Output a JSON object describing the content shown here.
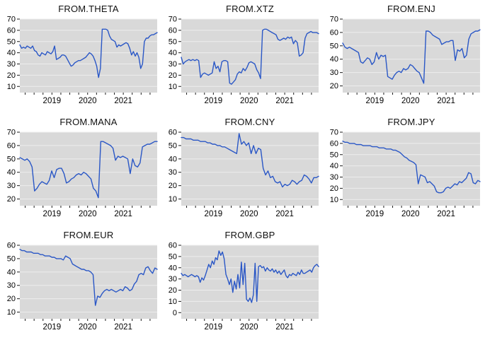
{
  "figure": {
    "description": "Grid of eight time-series line charts",
    "grid": {
      "columns": 3,
      "rows": 3
    }
  },
  "style": {
    "page_bg": "#ffffff",
    "plot_bg": "#d9d9d9",
    "grid_color": "#ededed",
    "tick_color": "#1a1a1a",
    "text_color": "#000000",
    "line_color": "#2a57c6"
  },
  "chart_data": [
    {
      "type": "line",
      "title": "FROM.THETA",
      "xlabel": "",
      "ylabel": "",
      "xlim": [
        2018.1,
        2021.95
      ],
      "x_tick_labels": [
        "2019",
        "2020",
        "2021"
      ],
      "x_tick_positions": [
        2019,
        2020,
        2021
      ],
      "x_minor_step": 0.25,
      "yticks": [
        10,
        20,
        30,
        40,
        50,
        60,
        70
      ],
      "ylim": [
        4.5,
        70
      ],
      "grid": "horizontal",
      "legend": "none",
      "line_color": "#2a57c6",
      "values": [
        47,
        44,
        45,
        44,
        46,
        45,
        44,
        46,
        42,
        41,
        38,
        37,
        40,
        39,
        38,
        41,
        40,
        39,
        41,
        46,
        34,
        35,
        36,
        38,
        38,
        37,
        34,
        31,
        28,
        29,
        31,
        32,
        33,
        33,
        34,
        35,
        36,
        38,
        40,
        39,
        37,
        33,
        28,
        18,
        26,
        61,
        61,
        61,
        60,
        55,
        52,
        51,
        50,
        45,
        47,
        46,
        47,
        48,
        49,
        48,
        44,
        38,
        41,
        37,
        40,
        36,
        26,
        30,
        50,
        53,
        53,
        55,
        56,
        56,
        57,
        58
      ]
    },
    {
      "type": "line",
      "title": "FROM.XTZ",
      "xlabel": "",
      "ylabel": "",
      "xlim": [
        2018.1,
        2021.95
      ],
      "x_tick_labels": [
        "2019",
        "2020",
        "2021"
      ],
      "x_tick_positions": [
        2019,
        2020,
        2021
      ],
      "x_minor_step": 0.25,
      "yticks": [
        10,
        20,
        30,
        40,
        50,
        60,
        70
      ],
      "ylim": [
        4.5,
        70
      ],
      "grid": "horizontal",
      "legend": "none",
      "line_color": "#2a57c6",
      "values": [
        36,
        30,
        32,
        33,
        34,
        33,
        34,
        33,
        34,
        33,
        18,
        21,
        22,
        21,
        20,
        21,
        22,
        32,
        26,
        28,
        23,
        32,
        33,
        33,
        32,
        13,
        12,
        14,
        16,
        21,
        23,
        22,
        26,
        24,
        27,
        31,
        32,
        31,
        30,
        25,
        22,
        17,
        60,
        61,
        61,
        60,
        59,
        58,
        57,
        56,
        52,
        51,
        52,
        53,
        52,
        54,
        53,
        54,
        48,
        51,
        49,
        37,
        38,
        40,
        53,
        57,
        58,
        59,
        58,
        58,
        58,
        57
      ]
    },
    {
      "type": "line",
      "title": "FROM.ENJ",
      "xlabel": "",
      "ylabel": "",
      "xlim": [
        2018.1,
        2021.95
      ],
      "x_tick_labels": [
        "2019",
        "2020",
        "2021"
      ],
      "x_tick_positions": [
        2019,
        2020,
        2021
      ],
      "x_minor_step": 0.25,
      "yticks": [
        20,
        30,
        40,
        50,
        60,
        70
      ],
      "ylim": [
        15,
        70
      ],
      "grid": "horizontal",
      "legend": "none",
      "line_color": "#2a57c6",
      "values": [
        52,
        49,
        48,
        49,
        48,
        47,
        46,
        45,
        38,
        37,
        39,
        41,
        40,
        36,
        38,
        45,
        40,
        43,
        42,
        43,
        27,
        26,
        25,
        28,
        30,
        31,
        30,
        33,
        32,
        33,
        36,
        35,
        33,
        31,
        30,
        26,
        22,
        61,
        61,
        60,
        58,
        57,
        56,
        55,
        51,
        52,
        53,
        53,
        54,
        54,
        39,
        47,
        46,
        48,
        41,
        43,
        55,
        59,
        60,
        61,
        61,
        62
      ]
    },
    {
      "type": "line",
      "title": "FROM.MANA",
      "xlabel": "",
      "ylabel": "",
      "xlim": [
        2018.1,
        2021.95
      ],
      "x_tick_labels": [
        "2019",
        "2020",
        "2021"
      ],
      "x_tick_positions": [
        2019,
        2020,
        2021
      ],
      "x_minor_step": 0.25,
      "yticks": [
        20,
        30,
        40,
        50,
        60,
        70
      ],
      "ylim": [
        15,
        70
      ],
      "grid": "horizontal",
      "legend": "none",
      "line_color": "#2a57c6",
      "values": [
        51,
        50,
        49,
        50,
        48,
        44,
        26,
        28,
        31,
        33,
        32,
        31,
        34,
        41,
        36,
        42,
        43,
        43,
        39,
        32,
        33,
        35,
        36,
        38,
        39,
        38,
        40,
        39,
        37,
        35,
        28,
        26,
        21,
        63,
        63,
        62,
        61,
        60,
        58,
        49,
        52,
        51,
        52,
        51,
        50,
        39,
        50,
        45,
        44,
        47,
        59,
        60,
        61,
        61,
        62,
        63,
        63
      ]
    },
    {
      "type": "line",
      "title": "FROM.CNY",
      "xlabel": "",
      "ylabel": "",
      "xlim": [
        2018.1,
        2021.95
      ],
      "x_tick_labels": [
        "2019",
        "2020",
        "2021"
      ],
      "x_tick_positions": [
        2019,
        2020,
        2021
      ],
      "x_minor_step": 0.25,
      "yticks": [
        10,
        20,
        30,
        40,
        50,
        60
      ],
      "ylim": [
        5,
        60
      ],
      "grid": "horizontal",
      "legend": "none",
      "line_color": "#2a57c6",
      "values": [
        56,
        56,
        55,
        55,
        55,
        54,
        54,
        54,
        53,
        53,
        53,
        52,
        52,
        51,
        51,
        50,
        50,
        49,
        49,
        48,
        47,
        46,
        45,
        44,
        59,
        51,
        53,
        50,
        52,
        44,
        50,
        44,
        48,
        47,
        33,
        28,
        31,
        26,
        27,
        23,
        22,
        23,
        19,
        21,
        20,
        21,
        24,
        23,
        21,
        23,
        24,
        28,
        27,
        25,
        22,
        26,
        26,
        27
      ]
    },
    {
      "type": "line",
      "title": "FROM.JPY",
      "xlabel": "",
      "ylabel": "",
      "xlim": [
        2018.1,
        2021.95
      ],
      "x_tick_labels": [
        "2019",
        "2020",
        "2021"
      ],
      "x_tick_positions": [
        2019,
        2020,
        2021
      ],
      "x_minor_step": 0.25,
      "yticks": [
        10,
        20,
        30,
        40,
        50,
        60,
        70
      ],
      "ylim": [
        4.5,
        70
      ],
      "grid": "horizontal",
      "legend": "none",
      "line_color": "#2a57c6",
      "values": [
        62,
        61,
        61,
        60,
        60,
        60,
        59,
        59,
        59,
        58,
        58,
        58,
        58,
        57,
        57,
        57,
        56,
        56,
        56,
        55,
        55,
        55,
        54,
        54,
        53,
        52,
        50,
        48,
        47,
        45,
        44,
        43,
        41,
        24,
        32,
        31,
        30,
        25,
        26,
        24,
        22,
        17,
        16,
        16,
        17,
        20,
        21,
        20,
        22,
        24,
        23,
        26,
        25,
        27,
        29,
        34,
        33,
        25,
        24,
        27,
        26
      ]
    },
    {
      "type": "line",
      "title": "FROM.EUR",
      "xlabel": "",
      "ylabel": "",
      "xlim": [
        2018.1,
        2021.95
      ],
      "x_tick_labels": [
        "2019",
        "2020",
        "2021"
      ],
      "x_tick_positions": [
        2019,
        2020,
        2021
      ],
      "x_minor_step": 0.25,
      "yticks": [
        10,
        20,
        30,
        40,
        50,
        60
      ],
      "ylim": [
        5,
        60
      ],
      "grid": "horizontal",
      "legend": "none",
      "line_color": "#2a57c6",
      "values": [
        57,
        56,
        56,
        55,
        55,
        55,
        54,
        54,
        54,
        53,
        53,
        52,
        52,
        52,
        51,
        51,
        50,
        50,
        50,
        49,
        52,
        51,
        50,
        46,
        45,
        44,
        43,
        42,
        42,
        41,
        41,
        40,
        38,
        15,
        22,
        21,
        24,
        26,
        27,
        26,
        27,
        26,
        25,
        26,
        27,
        26,
        29,
        28,
        26,
        27,
        31,
        33,
        38,
        39,
        38,
        43,
        44,
        41,
        39,
        43,
        42
      ]
    },
    {
      "type": "line",
      "title": "FROM.GBP",
      "xlabel": "",
      "ylabel": "",
      "xlim": [
        2018.1,
        2021.95
      ],
      "x_tick_labels": [
        "2019",
        "2020",
        "2021"
      ],
      "x_tick_positions": [
        2019,
        2020,
        2021
      ],
      "x_minor_step": 0.25,
      "yticks": [
        0,
        10,
        20,
        30,
        40,
        50,
        60
      ],
      "ylim": [
        -5.5,
        60
      ],
      "grid": "horizontal",
      "legend": "none",
      "line_color": "#2a57c6",
      "values": [
        35,
        33,
        34,
        33,
        32,
        33,
        34,
        33,
        32,
        33,
        32,
        27,
        31,
        29,
        33,
        38,
        43,
        40,
        46,
        43,
        49,
        47,
        55,
        51,
        54,
        48,
        34,
        30,
        25,
        30,
        18,
        28,
        21,
        34,
        22,
        45,
        25,
        44,
        12,
        10,
        13,
        9,
        16,
        44,
        10,
        41,
        42,
        40,
        41,
        37,
        40,
        38,
        37,
        39,
        36,
        38,
        35,
        37,
        34,
        36,
        38,
        33,
        31,
        34,
        33,
        35,
        34,
        33,
        36,
        34,
        38,
        35,
        35,
        36,
        37,
        38,
        36,
        40,
        42,
        43,
        41
      ]
    }
  ]
}
